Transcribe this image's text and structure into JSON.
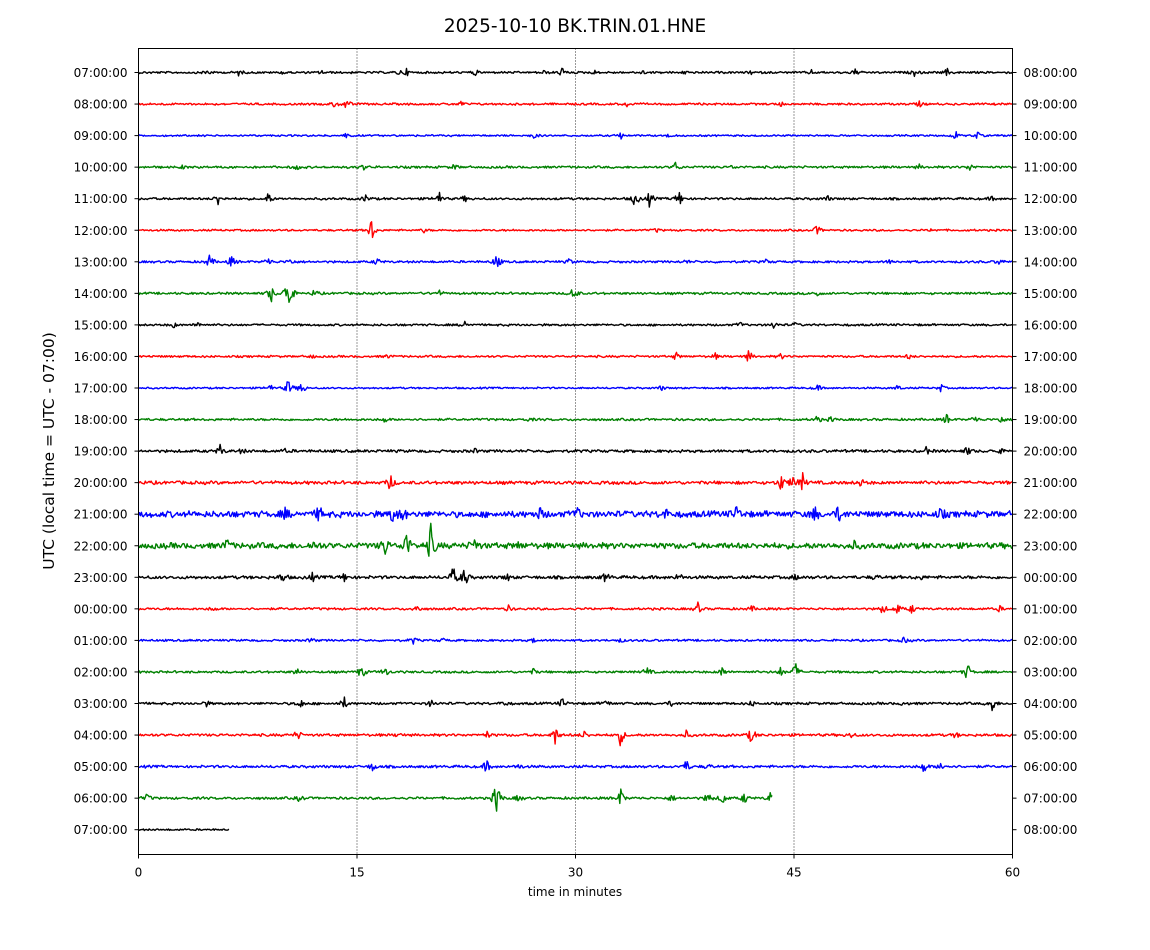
{
  "chart_data": {
    "type": "line",
    "title": "2025-10-10 BK.TRIN.01.HNE",
    "xlabel": "time in minutes",
    "ylabel": "UTC (local time = UTC - 07:00)",
    "xlim": [
      0,
      60
    ],
    "xticks": [
      0,
      15,
      30,
      45,
      60
    ],
    "grid": "vertical dotted lines at 15, 30, 45",
    "colors": [
      "#000000",
      "#ff0000",
      "#0000ff",
      "#008000"
    ],
    "rows": [
      {
        "left": "07:00:00",
        "right": "08:00:00",
        "noise": 1.2,
        "end": 60,
        "events": [
          [
            4.7,
            4
          ],
          [
            6.9,
            3.5
          ],
          [
            10,
            2
          ],
          [
            12.6,
            2
          ],
          [
            17.9,
            2.5
          ],
          [
            18.4,
            3
          ],
          [
            23.1,
            3.5
          ],
          [
            27.8,
            2
          ],
          [
            29.1,
            6
          ],
          [
            31.3,
            2
          ],
          [
            34.6,
            2
          ],
          [
            37.6,
            2
          ],
          [
            42.1,
            2
          ],
          [
            46.2,
            2
          ],
          [
            49.2,
            4
          ],
          [
            53.3,
            4
          ],
          [
            55.5,
            4
          ]
        ]
      },
      {
        "left": "08:00:00",
        "right": "09:00:00",
        "noise": 1.2,
        "end": 60,
        "events": [
          [
            13.5,
            4
          ],
          [
            14.3,
            7
          ],
          [
            22.1,
            3
          ],
          [
            33.6,
            4
          ],
          [
            44.1,
            2
          ],
          [
            53.6,
            3
          ]
        ]
      },
      {
        "left": "09:00:00",
        "right": "10:00:00",
        "noise": 1.0,
        "end": 60,
        "events": [
          [
            14.3,
            3
          ],
          [
            27.2,
            4
          ],
          [
            33.1,
            4
          ],
          [
            36.4,
            2
          ],
          [
            56.1,
            5
          ],
          [
            57.6,
            4
          ]
        ]
      },
      {
        "left": "10:00:00",
        "right": "11:00:00",
        "noise": 1.3,
        "end": 60,
        "events": [
          [
            3.1,
            2
          ],
          [
            10.9,
            3
          ],
          [
            15.4,
            3
          ],
          [
            21.7,
            3
          ],
          [
            36.9,
            6
          ],
          [
            40.8,
            2
          ],
          [
            53.6,
            2
          ],
          [
            57.1,
            4
          ]
        ]
      },
      {
        "left": "11:00:00",
        "right": "12:00:00",
        "noise": 1.3,
        "end": 60,
        "events": [
          [
            5.5,
            8
          ],
          [
            8.9,
            7
          ],
          [
            15.6,
            4
          ],
          [
            20.6,
            9
          ],
          [
            22.4,
            3
          ],
          [
            34.1,
            10
          ],
          [
            35.1,
            9
          ],
          [
            37.1,
            10
          ],
          [
            47.3,
            3
          ],
          [
            58.6,
            2
          ]
        ]
      },
      {
        "left": "12:00:00",
        "right": "13:00:00",
        "noise": 1.1,
        "end": 60,
        "events": [
          [
            16.0,
            14
          ],
          [
            19.6,
            2
          ],
          [
            35.6,
            2
          ],
          [
            46.6,
            6
          ],
          [
            54.5,
            2
          ]
        ]
      },
      {
        "left": "13:00:00",
        "right": "14:00:00",
        "noise": 1.3,
        "end": 60,
        "events": [
          [
            4.9,
            8
          ],
          [
            6.4,
            7
          ],
          [
            8.9,
            5
          ],
          [
            10.4,
            4
          ],
          [
            16.4,
            4
          ],
          [
            24.6,
            10
          ],
          [
            29.6,
            3
          ],
          [
            37.6,
            2
          ],
          [
            43.1,
            2
          ],
          [
            51.6,
            2
          ],
          [
            59.1,
            3
          ]
        ]
      },
      {
        "left": "14:00:00",
        "right": "15:00:00",
        "noise": 1.3,
        "end": 60,
        "events": [
          [
            9.1,
            10
          ],
          [
            10.3,
            32
          ],
          [
            12.1,
            4
          ],
          [
            20.6,
            4
          ],
          [
            29.9,
            10
          ],
          [
            46.6,
            3
          ]
        ]
      },
      {
        "left": "15:00:00",
        "right": "16:00:00",
        "noise": 1.2,
        "end": 60,
        "events": [
          [
            2.4,
            3
          ],
          [
            4.1,
            3
          ],
          [
            22.4,
            4
          ],
          [
            41.3,
            3
          ],
          [
            43.6,
            4
          ],
          [
            45.1,
            2
          ]
        ]
      },
      {
        "left": "16:00:00",
        "right": "17:00:00",
        "noise": 1.2,
        "end": 60,
        "events": [
          [
            11.9,
            2
          ],
          [
            17.1,
            2
          ],
          [
            36.9,
            4
          ],
          [
            39.6,
            3
          ],
          [
            41.9,
            7
          ],
          [
            44.1,
            3
          ],
          [
            52.9,
            3
          ]
        ]
      },
      {
        "left": "17:00:00",
        "right": "18:00:00",
        "noise": 1.0,
        "end": 60,
        "events": [
          [
            9.0,
            5
          ],
          [
            10.3,
            11
          ],
          [
            11.2,
            9
          ],
          [
            35.9,
            3
          ],
          [
            46.6,
            4
          ],
          [
            52.1,
            3
          ],
          [
            55.1,
            4
          ]
        ]
      },
      {
        "left": "18:00:00",
        "right": "19:00:00",
        "noise": 1.3,
        "end": 60,
        "events": [
          [
            16.9,
            3
          ],
          [
            26.9,
            2
          ],
          [
            46.6,
            4
          ],
          [
            47.6,
            3
          ],
          [
            55.5,
            6
          ],
          [
            57.4,
            5
          ],
          [
            59.2,
            4
          ]
        ]
      },
      {
        "left": "19:00:00",
        "right": "20:00:00",
        "noise": 1.6,
        "end": 60,
        "events": [
          [
            5.6,
            6
          ],
          [
            7.1,
            3
          ],
          [
            10.1,
            2
          ],
          [
            23.1,
            2
          ],
          [
            54.1,
            4
          ],
          [
            56.9,
            5
          ],
          [
            59.1,
            3
          ]
        ]
      },
      {
        "left": "20:00:00",
        "right": "21:00:00",
        "noise": 1.9,
        "end": 60,
        "events": [
          [
            17.3,
            10
          ],
          [
            44.1,
            9
          ],
          [
            44.9,
            8
          ],
          [
            45.6,
            9
          ],
          [
            49.6,
            4
          ]
        ]
      },
      {
        "left": "21:00:00",
        "right": "22:00:00",
        "noise": 3.6,
        "end": 60,
        "events": [
          [
            10.1,
            6
          ],
          [
            12.4,
            9
          ],
          [
            17.4,
            8
          ],
          [
            18.1,
            9
          ],
          [
            27.6,
            6
          ],
          [
            30.1,
            7
          ],
          [
            36.1,
            7
          ],
          [
            41.1,
            9
          ],
          [
            46.4,
            8
          ],
          [
            48.1,
            9
          ],
          [
            55.1,
            6
          ]
        ]
      },
      {
        "left": "22:00:00",
        "right": "23:00:00",
        "noise": 3.4,
        "end": 60,
        "events": [
          [
            6.1,
            6
          ],
          [
            12.1,
            5
          ],
          [
            16.9,
            12
          ],
          [
            18.4,
            16
          ],
          [
            20.1,
            25
          ],
          [
            23.1,
            8
          ],
          [
            26.1,
            3
          ],
          [
            49.1,
            4
          ]
        ]
      },
      {
        "left": "23:00:00",
        "right": "00:00:00",
        "noise": 1.8,
        "end": 60,
        "events": [
          [
            9.9,
            6
          ],
          [
            11.9,
            5
          ],
          [
            14.1,
            5
          ],
          [
            21.6,
            12
          ],
          [
            22.4,
            12
          ],
          [
            25.3,
            4
          ],
          [
            32.1,
            6
          ],
          [
            37.1,
            5
          ],
          [
            45.1,
            3
          ],
          [
            50.6,
            3
          ],
          [
            53.6,
            3
          ]
        ]
      },
      {
        "left": "00:00:00",
        "right": "01:00:00",
        "noise": 1.3,
        "end": 60,
        "events": [
          [
            5.1,
            3
          ],
          [
            19.1,
            5
          ],
          [
            25.4,
            3
          ],
          [
            38.4,
            6
          ],
          [
            42.1,
            3
          ],
          [
            51.1,
            6
          ],
          [
            52.1,
            6
          ],
          [
            53.1,
            5
          ],
          [
            59.1,
            3
          ]
        ]
      },
      {
        "left": "01:00:00",
        "right": "02:00:00",
        "noise": 1.2,
        "end": 60,
        "events": [
          [
            11.9,
            3
          ],
          [
            18.9,
            4
          ],
          [
            20.9,
            2
          ],
          [
            27.1,
            2
          ],
          [
            33.1,
            2
          ],
          [
            52.6,
            4
          ]
        ]
      },
      {
        "left": "02:00:00",
        "right": "03:00:00",
        "noise": 1.3,
        "end": 60,
        "events": [
          [
            10.9,
            4
          ],
          [
            15.3,
            9
          ],
          [
            16.9,
            6
          ],
          [
            27.1,
            3
          ],
          [
            34.9,
            6
          ],
          [
            40.1,
            6
          ],
          [
            44.1,
            5
          ],
          [
            45.1,
            10
          ],
          [
            56.9,
            10
          ]
        ]
      },
      {
        "left": "03:00:00",
        "right": "04:00:00",
        "noise": 1.4,
        "end": 60,
        "events": [
          [
            4.6,
            4
          ],
          [
            11.1,
            6
          ],
          [
            14.1,
            7
          ],
          [
            20.1,
            4
          ],
          [
            25.1,
            3
          ],
          [
            29.1,
            5
          ],
          [
            32.1,
            4
          ],
          [
            36.6,
            3
          ],
          [
            42.1,
            3
          ],
          [
            52.6,
            3
          ],
          [
            58.6,
            10
          ]
        ]
      },
      {
        "left": "04:00:00",
        "right": "05:00:00",
        "noise": 1.5,
        "end": 60,
        "events": [
          [
            10.9,
            6
          ],
          [
            17.9,
            3
          ],
          [
            23.9,
            4
          ],
          [
            28.6,
            10
          ],
          [
            30.6,
            4
          ],
          [
            33.1,
            12
          ],
          [
            37.6,
            4
          ],
          [
            42.1,
            10
          ],
          [
            48.9,
            3
          ],
          [
            56.1,
            3
          ]
        ]
      },
      {
        "left": "05:00:00",
        "right": "06:00:00",
        "noise": 1.5,
        "end": 60,
        "events": [
          [
            16.1,
            5
          ],
          [
            23.9,
            7
          ],
          [
            26.1,
            3
          ],
          [
            37.6,
            7
          ],
          [
            39.1,
            3
          ],
          [
            53.9,
            7
          ],
          [
            55.1,
            5
          ]
        ]
      },
      {
        "left": "06:00:00",
        "right": "07:00:00",
        "noise": 1.4,
        "end": 43.5,
        "events": [
          [
            0.6,
            4
          ],
          [
            11.1,
            4
          ],
          [
            24.6,
            24
          ],
          [
            26.1,
            4
          ],
          [
            33.1,
            10
          ],
          [
            36.6,
            4
          ],
          [
            39.1,
            7
          ],
          [
            40.1,
            7
          ],
          [
            41.6,
            6
          ],
          [
            43.4,
            6
          ]
        ]
      },
      {
        "left": "07:00:00",
        "right": "08:00:00",
        "noise": 1.0,
        "end": 6.2,
        "events": []
      }
    ]
  }
}
